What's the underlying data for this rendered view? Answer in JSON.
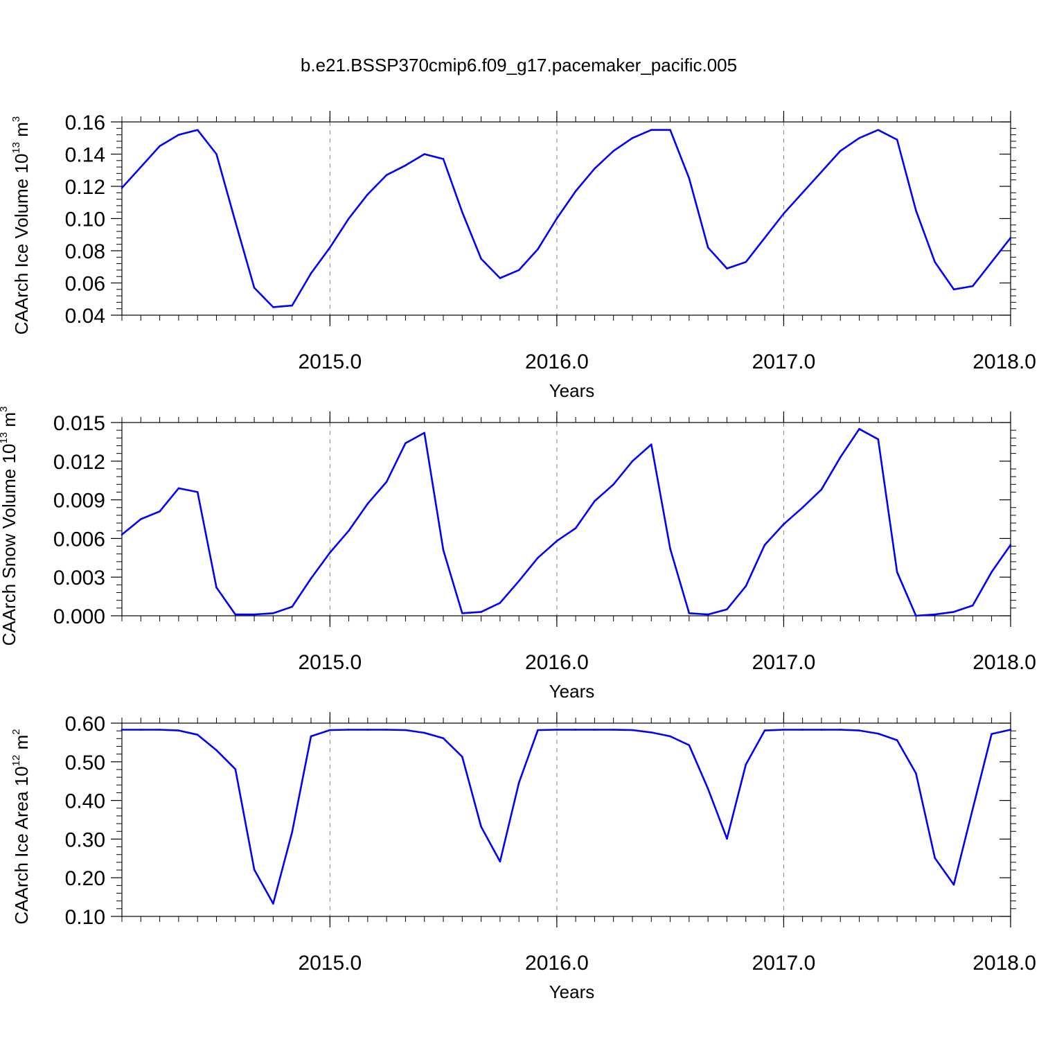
{
  "title": "b.e21.BSSP370cmip6.f09_g17.pacemaker_pacific.005",
  "colors": {
    "line": "#0000ff",
    "axis": "#000000",
    "grid": "#888888"
  },
  "chart_data": [
    {
      "type": "line",
      "name": "ice-volume",
      "ylabel": {
        "pre": "CAArch Ice Volume 10",
        "exp": "13",
        "mid": " m",
        "exp2": "3"
      },
      "xlabel": "Years",
      "xlim": [
        2014.083,
        2018.0
      ],
      "ylim": [
        0.04,
        0.16
      ],
      "yticks": [
        0.04,
        0.06,
        0.08,
        0.1,
        0.12,
        0.14,
        0.16
      ],
      "ytick_labels": [
        "0.04",
        "0.06",
        "0.08",
        "0.10",
        "0.12",
        "0.14",
        "0.16"
      ],
      "xticks": [
        2015.0,
        2016.0,
        2017.0,
        2018.0
      ],
      "xtick_labels": [
        "2015.0",
        "2016.0",
        "2017.0",
        "2018.0"
      ],
      "grid": "vertical dashed at major x ticks",
      "x_start": 2014.083,
      "x_step": 0.0833333,
      "values": [
        0.119,
        0.132,
        0.145,
        0.152,
        0.155,
        0.14,
        0.098,
        0.057,
        0.045,
        0.046,
        0.066,
        0.082,
        0.1,
        0.115,
        0.127,
        0.133,
        0.14,
        0.137,
        0.104,
        0.075,
        0.063,
        0.068,
        0.081,
        0.1,
        0.117,
        0.131,
        0.142,
        0.15,
        0.155,
        0.155,
        0.125,
        0.082,
        0.069,
        0.073,
        0.088,
        0.103,
        0.116,
        0.129,
        0.142,
        0.15,
        0.155,
        0.149,
        0.105,
        0.073,
        0.056,
        0.058,
        0.073,
        0.088
      ]
    },
    {
      "type": "line",
      "name": "snow-volume",
      "ylabel": {
        "pre": "CAArch Snow Volume 10",
        "exp": "13",
        "mid": " m",
        "exp2": "3"
      },
      "xlabel": "Years",
      "xlim": [
        2014.083,
        2018.0
      ],
      "ylim": [
        0.0,
        0.015
      ],
      "yticks": [
        0.0,
        0.003,
        0.006,
        0.009,
        0.012,
        0.015
      ],
      "ytick_labels": [
        "0.000",
        "0.003",
        "0.006",
        "0.009",
        "0.012",
        "0.015"
      ],
      "xticks": [
        2015.0,
        2016.0,
        2017.0,
        2018.0
      ],
      "xtick_labels": [
        "2015.0",
        "2016.0",
        "2017.0",
        "2018.0"
      ],
      "grid": "vertical dashed at major x ticks",
      "x_start": 2014.083,
      "x_step": 0.0833333,
      "values": [
        0.0063,
        0.0075,
        0.0081,
        0.0099,
        0.0096,
        0.0022,
        0.0001,
        0.0001,
        0.0002,
        0.0007,
        0.0029,
        0.0049,
        0.0066,
        0.0087,
        0.0104,
        0.0134,
        0.0142,
        0.0051,
        0.0002,
        0.0003,
        0.001,
        0.0027,
        0.0045,
        0.0058,
        0.0068,
        0.0089,
        0.0102,
        0.012,
        0.0133,
        0.0052,
        0.0002,
        0.0001,
        0.0005,
        0.0023,
        0.0055,
        0.0071,
        0.0084,
        0.0098,
        0.0123,
        0.0145,
        0.0137,
        0.0034,
        0.0,
        0.0001,
        0.0003,
        0.0008,
        0.0034,
        0.0055
      ]
    },
    {
      "type": "line",
      "name": "ice-area",
      "ylabel": {
        "pre": "CAArch Ice Area 10",
        "exp": "12",
        "mid": " m",
        "exp2": "2"
      },
      "xlabel": "Years",
      "xlim": [
        2014.083,
        2018.0
      ],
      "ylim": [
        0.1,
        0.6
      ],
      "yticks": [
        0.1,
        0.2,
        0.3,
        0.4,
        0.5,
        0.6
      ],
      "ytick_labels": [
        "0.10",
        "0.20",
        "0.30",
        "0.40",
        "0.50",
        "0.60"
      ],
      "xticks": [
        2015.0,
        2016.0,
        2017.0,
        2018.0
      ],
      "xtick_labels": [
        "2015.0",
        "2016.0",
        "2017.0",
        "2018.0"
      ],
      "grid": "vertical dashed at major x ticks",
      "x_start": 2014.083,
      "x_step": 0.0833333,
      "values": [
        0.583,
        0.583,
        0.583,
        0.581,
        0.57,
        0.53,
        0.481,
        0.221,
        0.133,
        0.318,
        0.566,
        0.582,
        0.583,
        0.583,
        0.583,
        0.582,
        0.575,
        0.561,
        0.513,
        0.332,
        0.242,
        0.446,
        0.582,
        0.583,
        0.583,
        0.583,
        0.583,
        0.582,
        0.576,
        0.566,
        0.543,
        0.43,
        0.301,
        0.493,
        0.581,
        0.583,
        0.583,
        0.583,
        0.583,
        0.581,
        0.573,
        0.556,
        0.47,
        0.251,
        0.182,
        0.378,
        0.572,
        0.583
      ]
    }
  ]
}
